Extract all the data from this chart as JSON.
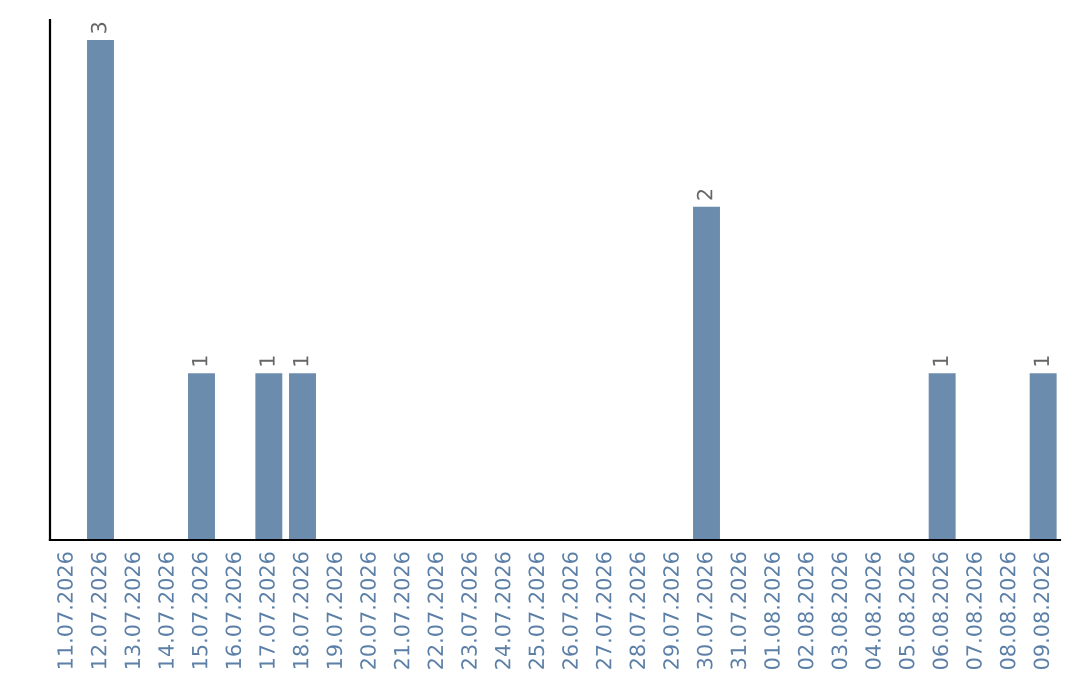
{
  "chart_data": {
    "type": "bar",
    "categories": [
      "11.07.2026",
      "12.07.2026",
      "13.07.2026",
      "14.07.2026",
      "15.07.2026",
      "16.07.2026",
      "17.07.2026",
      "18.07.2026",
      "19.07.2026",
      "20.07.2026",
      "21.07.2026",
      "22.07.2026",
      "23.07.2026",
      "24.07.2026",
      "25.07.2026",
      "26.07.2026",
      "27.07.2026",
      "28.07.2026",
      "29.07.2026",
      "30.07.2026",
      "31.07.2026",
      "01.08.2026",
      "02.08.2026",
      "03.08.2026",
      "04.08.2026",
      "05.08.2026",
      "06.08.2026",
      "07.08.2026",
      "08.08.2026",
      "09.08.2026"
    ],
    "values": [
      0,
      3,
      0,
      0,
      1,
      0,
      1,
      1,
      0,
      0,
      0,
      0,
      0,
      0,
      0,
      0,
      0,
      0,
      0,
      2,
      0,
      0,
      0,
      0,
      0,
      0,
      1,
      0,
      0,
      1
    ],
    "value_labels": [
      null,
      "3",
      null,
      null,
      "1",
      null,
      "1",
      "1",
      null,
      null,
      null,
      null,
      null,
      null,
      null,
      null,
      null,
      null,
      null,
      "2",
      null,
      null,
      null,
      null,
      null,
      null,
      "1",
      null,
      null,
      "1"
    ],
    "color": "#6b8cad",
    "tick_labels": "x",
    "grid": false,
    "legend": false
  }
}
